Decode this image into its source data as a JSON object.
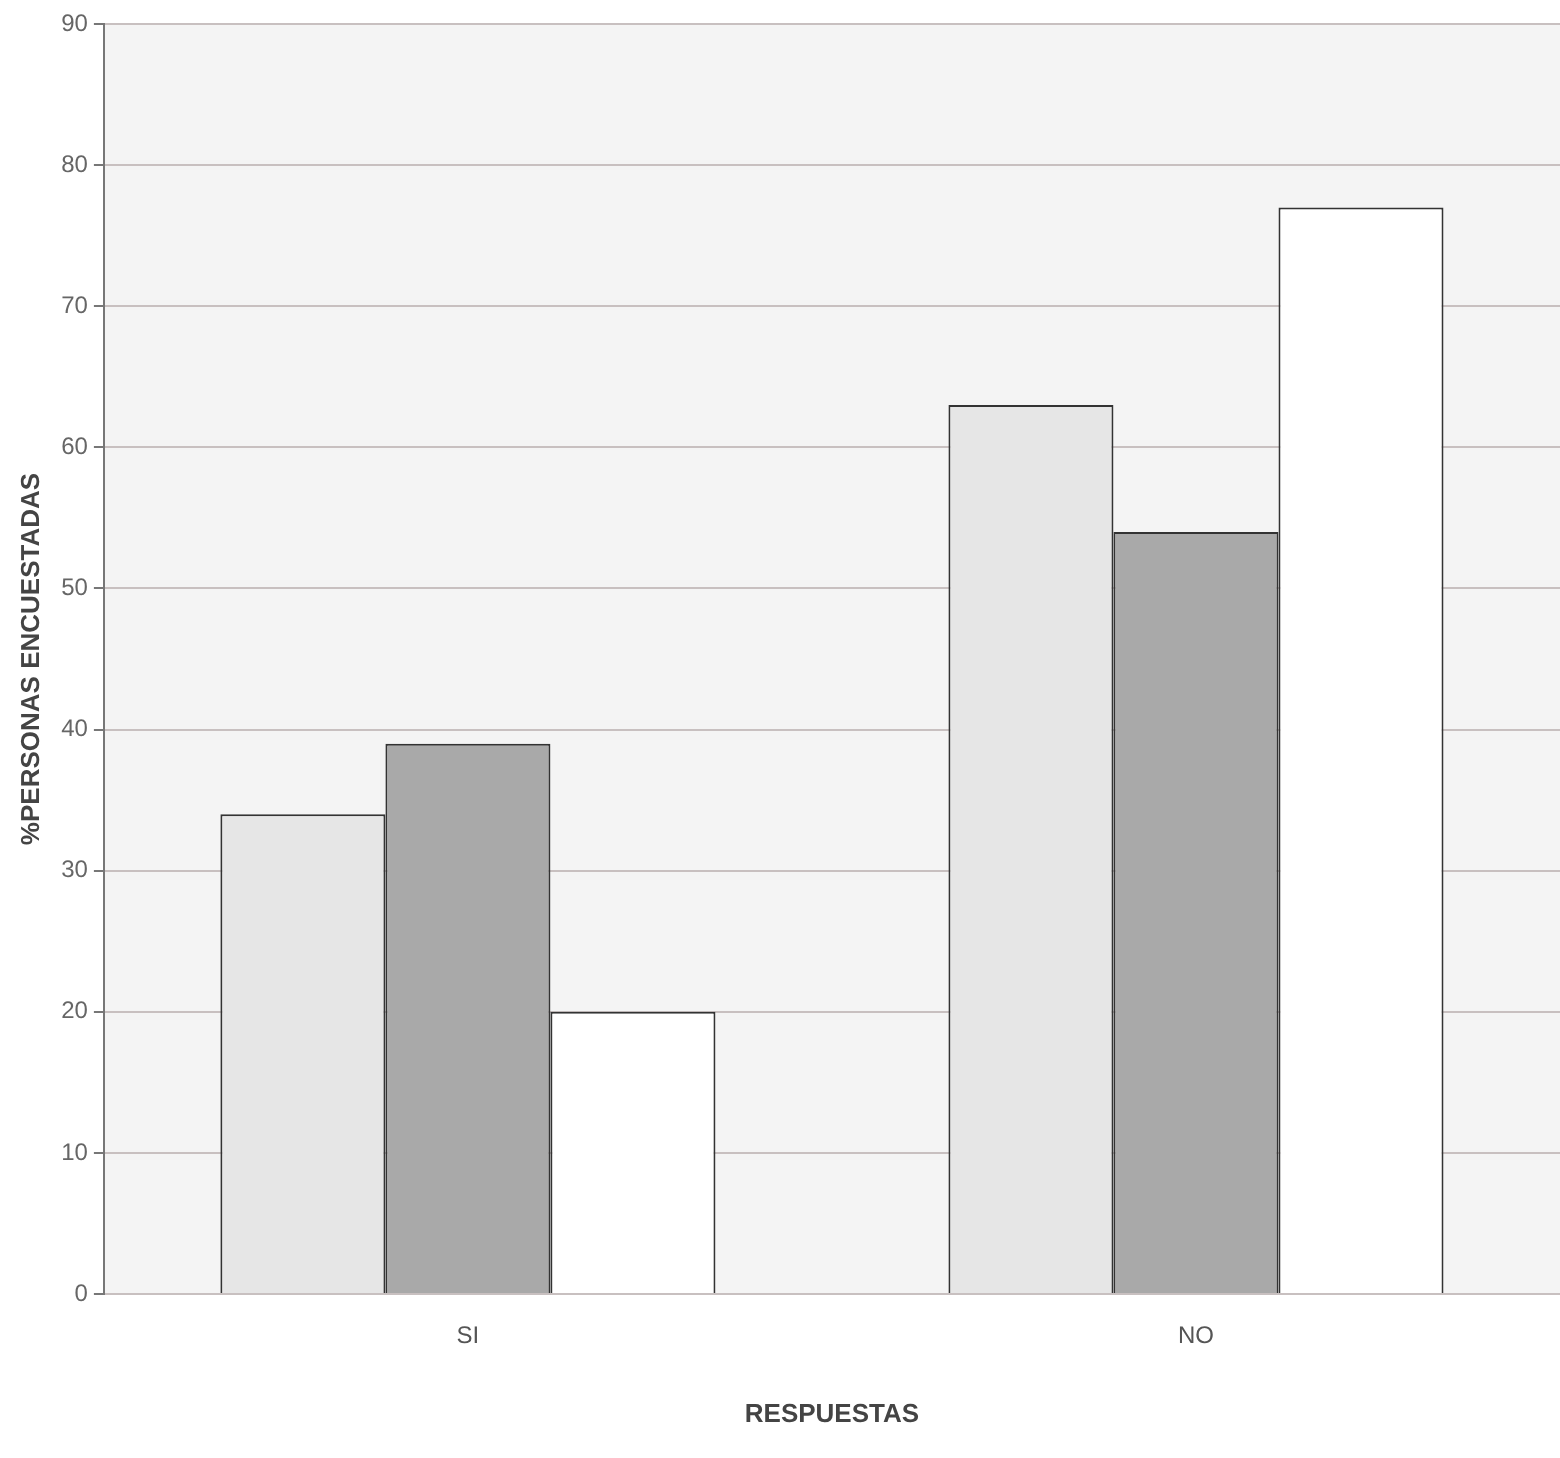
{
  "chart_data": {
    "type": "bar",
    "xlabel": "RESPUESTAS",
    "ylabel": "%PERSONAS ENCUESTADAS",
    "categories": [
      "SI",
      "NO"
    ],
    "series": [
      {
        "color": "#e6e6e6",
        "values": [
          34,
          63
        ]
      },
      {
        "color": "#a9a9a9",
        "values": [
          39,
          54
        ]
      },
      {
        "color": "#ffffff",
        "values": [
          20,
          77
        ]
      }
    ],
    "ylim": [
      0,
      90
    ],
    "yticks": [
      0,
      10,
      20,
      30,
      40,
      50,
      60,
      70,
      80,
      90
    ],
    "grid": "y",
    "legend": false
  }
}
